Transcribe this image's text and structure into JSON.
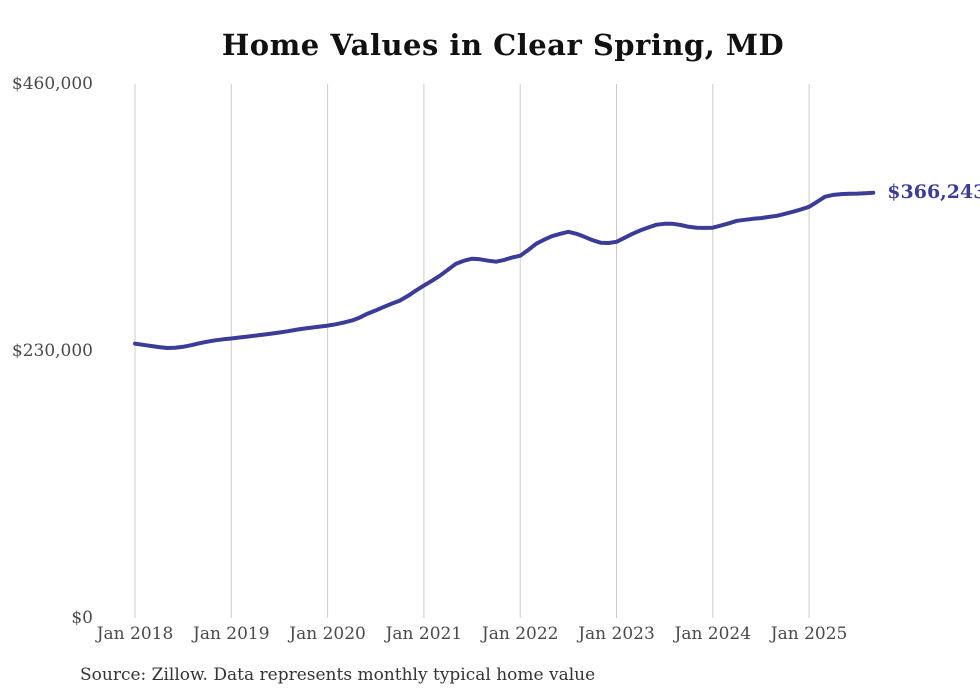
{
  "page": {
    "source_note": "Source: Zillow. Data represents monthly typical home value"
  },
  "chart_data": {
    "type": "line",
    "title": "Home Values in Clear Spring, MD",
    "series_name": "Monthly typical home value",
    "xlabel": "",
    "ylabel": "",
    "ylim": [
      0,
      460000
    ],
    "grid": "vertical-only",
    "legend": "none",
    "end_label": "$366,243",
    "end_value": 366243,
    "line_color": "#3b3b98",
    "gridline_color": "#cccccc",
    "axis_label_color": "#4a4a4a",
    "title_color": "#111111",
    "source_color": "#333333",
    "y_ticks": [
      {
        "label": "$0",
        "value": 0
      },
      {
        "label": "$230,000",
        "value": 230000
      },
      {
        "label": "$460,000",
        "value": 460000
      }
    ],
    "x_ticks": [
      {
        "label": "Jan 2018",
        "month_index": 0
      },
      {
        "label": "Jan 2019",
        "month_index": 12
      },
      {
        "label": "Jan 2020",
        "month_index": 24
      },
      {
        "label": "Jan 2021",
        "month_index": 36
      },
      {
        "label": "Jan 2022",
        "month_index": 48
      },
      {
        "label": "Jan 2023",
        "month_index": 60
      },
      {
        "label": "Jan 2024",
        "month_index": 72
      },
      {
        "label": "Jan 2025",
        "month_index": 84
      }
    ],
    "months": [
      "2018-01",
      "2018-02",
      "2018-03",
      "2018-04",
      "2018-05",
      "2018-06",
      "2018-07",
      "2018-08",
      "2018-09",
      "2018-10",
      "2018-11",
      "2018-12",
      "2019-01",
      "2019-02",
      "2019-03",
      "2019-04",
      "2019-05",
      "2019-06",
      "2019-07",
      "2019-08",
      "2019-09",
      "2019-10",
      "2019-11",
      "2019-12",
      "2020-01",
      "2020-02",
      "2020-03",
      "2020-04",
      "2020-05",
      "2020-06",
      "2020-07",
      "2020-08",
      "2020-09",
      "2020-10",
      "2020-11",
      "2020-12",
      "2021-01",
      "2021-02",
      "2021-03",
      "2021-04",
      "2021-05",
      "2021-06",
      "2021-07",
      "2021-08",
      "2021-09",
      "2021-10",
      "2021-11",
      "2021-12",
      "2022-01",
      "2022-02",
      "2022-03",
      "2022-04",
      "2022-05",
      "2022-06",
      "2022-07",
      "2022-08",
      "2022-09",
      "2022-10",
      "2022-11",
      "2022-12",
      "2023-01",
      "2023-02",
      "2023-03",
      "2023-04",
      "2023-05",
      "2023-06",
      "2023-07",
      "2023-08",
      "2023-09",
      "2023-10",
      "2023-11",
      "2023-12",
      "2024-01",
      "2024-02",
      "2024-03",
      "2024-04",
      "2024-05",
      "2024-06",
      "2024-07",
      "2024-08",
      "2024-09",
      "2024-10",
      "2024-11",
      "2024-12",
      "2025-01",
      "2025-02",
      "2025-03",
      "2025-04",
      "2025-05",
      "2025-06",
      "2025-07",
      "2025-08",
      "2025-09"
    ],
    "values": [
      236400,
      235300,
      234300,
      233400,
      232600,
      232800,
      233600,
      235000,
      236600,
      238000,
      239200,
      240100,
      240800,
      241600,
      242400,
      243300,
      244100,
      245000,
      245900,
      247000,
      248200,
      249300,
      250200,
      251000,
      251900,
      253000,
      254500,
      256200,
      258800,
      262200,
      265000,
      268000,
      270800,
      273400,
      277500,
      282000,
      286300,
      290500,
      294900,
      300000,
      305200,
      307800,
      309500,
      309000,
      307800,
      306900,
      308500,
      310500,
      312100,
      317000,
      322400,
      326000,
      329000,
      331000,
      332700,
      331000,
      328400,
      325500,
      323300,
      323000,
      324100,
      327500,
      331000,
      334000,
      336500,
      338800,
      339600,
      339600,
      338500,
      337000,
      336200,
      336000,
      336200,
      338000,
      340000,
      342200,
      343000,
      343900,
      344500,
      345500,
      346500,
      348200,
      350000,
      352000,
      354200,
      358500,
      362900,
      364500,
      365200,
      365400,
      365600,
      365900,
      366243
    ]
  }
}
